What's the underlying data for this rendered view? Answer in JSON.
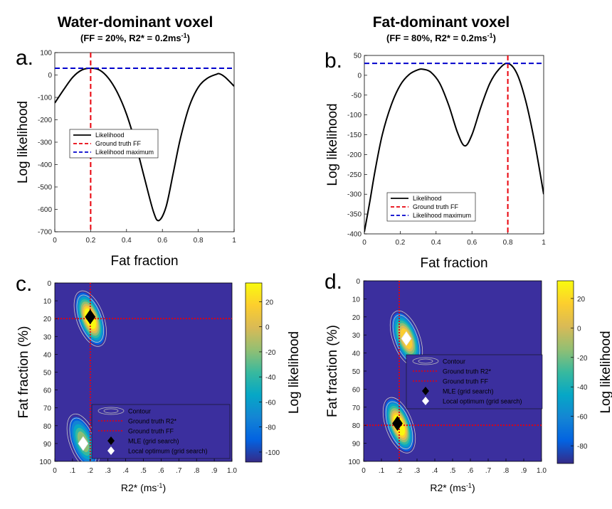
{
  "panels_a_b": [
    {
      "title": "Water-dominant voxel",
      "subtitle": "(FF = 20%, R2* = 0.2ms",
      "subtitle_sup": "-1",
      "subtitle_end": ")",
      "label": "a."
    },
    {
      "title": "Fat-dominant voxel",
      "subtitle": "(FF = 80%, R2* = 0.2ms",
      "subtitle_sup": "-1",
      "subtitle_end": ")",
      "label": "b."
    }
  ],
  "panels_c_d": [
    {
      "label": "c."
    },
    {
      "label": "d."
    }
  ],
  "chart_data": [
    {
      "type": "line",
      "panel": "a",
      "xlabel": "Fat fraction",
      "ylabel": "Log likelihood",
      "xlim": [
        0,
        1
      ],
      "ylim": [
        -700,
        100
      ],
      "xticks": [
        "0",
        "0.2",
        "0.4",
        "0.6",
        "0.8",
        "1"
      ],
      "yticks": [
        "100",
        "0",
        "-100",
        "-200",
        "-300",
        "-400",
        "-500",
        "-600",
        "-700"
      ],
      "series": [
        {
          "name": "Likelihood",
          "color": "#000000",
          "x": [
            0,
            0.05,
            0.1,
            0.15,
            0.2,
            0.25,
            0.3,
            0.35,
            0.4,
            0.45,
            0.5,
            0.55,
            0.58,
            0.62,
            0.66,
            0.7,
            0.75,
            0.8,
            0.85,
            0.9,
            0.92,
            0.95,
            1.0
          ],
          "y": [
            -125,
            -65,
            -10,
            22,
            30,
            22,
            -15,
            -80,
            -175,
            -305,
            -460,
            -610,
            -650,
            -590,
            -440,
            -285,
            -140,
            -55,
            -15,
            3,
            5,
            -10,
            -50
          ]
        }
      ],
      "annotations": [
        {
          "name": "Ground truth FF",
          "type": "vline",
          "x": 0.2,
          "color": "#e8000b",
          "style": "dashed"
        },
        {
          "name": "Likelihood maximum",
          "type": "hline",
          "y": 30,
          "color": "#0000cc",
          "style": "dashed"
        }
      ],
      "legend": [
        "Likelihood",
        "Ground truth FF",
        "Likelihood maximum"
      ],
      "legend_position": "middle-left"
    },
    {
      "type": "line",
      "panel": "b",
      "xlabel": "Fat fraction",
      "ylabel": "Log likelihood",
      "xlim": [
        0,
        1
      ],
      "ylim": [
        -400,
        50
      ],
      "xticks": [
        "0",
        "0.2",
        "0.4",
        "0.6",
        "0.8",
        "1"
      ],
      "yticks": [
        "50",
        "0",
        "-50",
        "-100",
        "-150",
        "-200",
        "-250",
        "-300",
        "-350",
        "-400"
      ],
      "series": [
        {
          "name": "Likelihood",
          "color": "#000000",
          "x": [
            0,
            0.03,
            0.06,
            0.1,
            0.15,
            0.2,
            0.25,
            0.3,
            0.33,
            0.37,
            0.42,
            0.47,
            0.52,
            0.56,
            0.6,
            0.65,
            0.7,
            0.75,
            0.8,
            0.85,
            0.9,
            0.95,
            1.0
          ],
          "y": [
            -395,
            -320,
            -240,
            -150,
            -75,
            -25,
            2,
            14,
            15,
            8,
            -20,
            -75,
            -145,
            -178,
            -150,
            -80,
            -20,
            15,
            30,
            5,
            -65,
            -170,
            -300
          ]
        }
      ],
      "annotations": [
        {
          "name": "Ground truth FF",
          "type": "vline",
          "x": 0.8,
          "color": "#e8000b",
          "style": "dashed"
        },
        {
          "name": "Likelihood maximum",
          "type": "hline",
          "y": 30,
          "color": "#0000cc",
          "style": "dashed"
        }
      ],
      "legend": [
        "Likelihood",
        "Ground truth FF",
        "Likelihood maximum"
      ],
      "legend_position": "bottom-left"
    },
    {
      "type": "heatmap",
      "panel": "c",
      "xlabel": "R2* (ms",
      "xlabel_sup": "-1",
      "xlabel_end": ")",
      "ylabel": "Fat fraction (%)",
      "colorbar_label": "Log likelihood",
      "xlim": [
        0,
        1
      ],
      "ylim": [
        0,
        100
      ],
      "y_reversed": true,
      "xticks": [
        "0",
        ".1",
        ".2",
        ".3",
        ".4",
        ".5",
        ".6",
        ".7",
        ".8",
        ".9",
        "1.0"
      ],
      "yticks": [
        "0",
        "10",
        "20",
        "30",
        "40",
        "50",
        "60",
        "70",
        "80",
        "90",
        "100"
      ],
      "colorbar_ticks": [
        "20",
        "0",
        "-20",
        "-40",
        "-60",
        "-80",
        "-100"
      ],
      "colorbar_range": [
        -108,
        35
      ],
      "colormap": "parula",
      "background_value": -108,
      "peaks": [
        {
          "r2": 0.2,
          "ff": 20,
          "value": 32
        },
        {
          "r2": 0.16,
          "ff": 89,
          "value": -20
        }
      ],
      "ground_truth": {
        "r2": 0.2,
        "ff": 20
      },
      "mle": {
        "r2": 0.2,
        "ff": 19
      },
      "local_optimum": {
        "r2": 0.16,
        "ff": 90
      },
      "legend": [
        "Contour",
        "Ground truth R2*",
        "Ground truth FF",
        "MLE (grid search)",
        "Local optimum (grid search)"
      ],
      "legend_position": "bottom-right"
    },
    {
      "type": "heatmap",
      "panel": "d",
      "xlabel": "R2* (ms",
      "xlabel_sup": "-1",
      "xlabel_end": ")",
      "ylabel": "Fat fraction (%)",
      "colorbar_label": "Log likelihood",
      "xlim": [
        0,
        1
      ],
      "ylim": [
        0,
        100
      ],
      "y_reversed": true,
      "xticks": [
        "0",
        ".1",
        ".2",
        ".3",
        ".4",
        ".5",
        ".6",
        ".7",
        ".8",
        ".9",
        "1.0"
      ],
      "yticks": [
        "0",
        "10",
        "20",
        "30",
        "40",
        "50",
        "60",
        "70",
        "80",
        "90",
        "100"
      ],
      "colorbar_ticks": [
        "20",
        "0",
        "-20",
        "-40",
        "-60",
        "-80"
      ],
      "colorbar_range": [
        -92,
        32
      ],
      "colormap": "parula",
      "background_value": -92,
      "peaks": [
        {
          "r2": 0.2,
          "ff": 80,
          "value": 30
        },
        {
          "r2": 0.24,
          "ff": 32,
          "value": 15
        }
      ],
      "ground_truth": {
        "r2": 0.2,
        "ff": 80
      },
      "mle": {
        "r2": 0.19,
        "ff": 79
      },
      "local_optimum": {
        "r2": 0.24,
        "ff": 32
      },
      "legend": [
        "Contour",
        "Ground truth R2*",
        "Ground truth FF",
        "MLE (grid search)",
        "Local optimum (grid search)"
      ],
      "legend_position": "middle-right"
    }
  ]
}
